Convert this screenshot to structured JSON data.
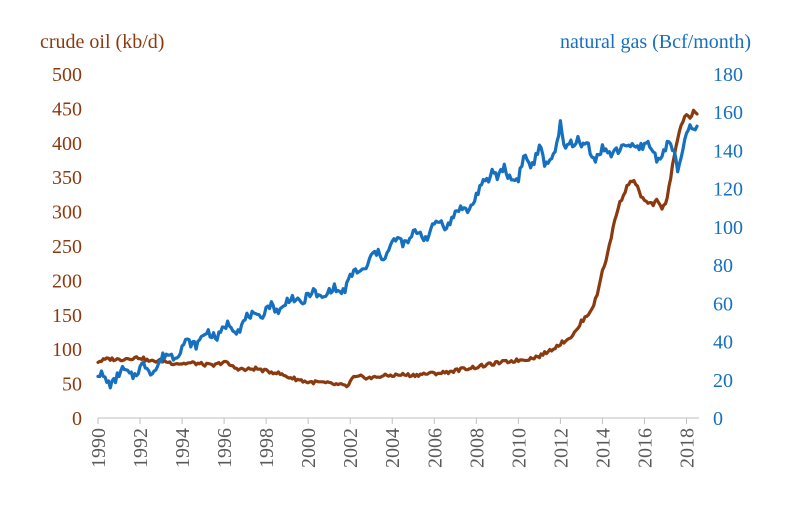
{
  "colors": {
    "oil": "#8b3a0f",
    "gas": "#1570bf",
    "axis": "#bfbfbf"
  },
  "chart_data": {
    "type": "line",
    "left_axis_label": "crude oil (kb/d)",
    "right_axis_label": "natural gas (Bcf/month)",
    "x_ticks": [
      "1990",
      "1992",
      "1994",
      "1996",
      "1998",
      "2000",
      "2002",
      "2004",
      "2006",
      "2008",
      "2010",
      "2012",
      "2014",
      "2016",
      "2018"
    ],
    "left_ticks": [
      "0",
      "50",
      "100",
      "150",
      "200",
      "250",
      "300",
      "350",
      "400",
      "450",
      "500"
    ],
    "right_ticks": [
      "0",
      "20",
      "40",
      "60",
      "80",
      "100",
      "120",
      "140",
      "160",
      "180"
    ],
    "xlim": [
      1990,
      2018.5
    ],
    "left_ylim": [
      0,
      500
    ],
    "right_ylim": [
      0,
      180
    ],
    "grid": false,
    "series": [
      {
        "name": "crude oil (kb/d)",
        "axis": "left",
        "x": [
          1990.0,
          1990.5,
          1991.0,
          1991.5,
          1992.0,
          1992.5,
          1993.0,
          1993.5,
          1994.0,
          1994.5,
          1995.0,
          1995.5,
          1996.0,
          1996.5,
          1997.0,
          1997.5,
          1998.0,
          1998.5,
          1999.0,
          1999.5,
          2000.0,
          2000.5,
          2001.0,
          2001.5,
          2001.9,
          2002.1,
          2002.5,
          2003.0,
          2003.5,
          2004.0,
          2004.5,
          2005.0,
          2005.5,
          2006.0,
          2006.5,
          2007.0,
          2007.5,
          2008.0,
          2008.5,
          2009.0,
          2009.5,
          2010.0,
          2010.5,
          2011.0,
          2011.5,
          2012.0,
          2012.5,
          2012.8,
          2013.0,
          2013.3,
          2013.6,
          2013.8,
          2014.0,
          2014.2,
          2014.4,
          2014.6,
          2014.8,
          2015.0,
          2015.2,
          2015.4,
          2015.6,
          2015.8,
          2016.0,
          2016.2,
          2016.4,
          2016.6,
          2016.8,
          2017.0,
          2017.2,
          2017.4,
          2017.6,
          2017.8,
          2018.0,
          2018.2,
          2018.35,
          2018.5
        ],
        "y": [
          82,
          86,
          85,
          87,
          88,
          82,
          84,
          80,
          79,
          80,
          78,
          76,
          82,
          73,
          70,
          72,
          68,
          66,
          60,
          56,
          52,
          52,
          50,
          48,
          46,
          58,
          60,
          58,
          61,
          62,
          63,
          62,
          64,
          65,
          66,
          69,
          72,
          74,
          77,
          80,
          82,
          84,
          86,
          90,
          98,
          108,
          118,
          128,
          140,
          150,
          165,
          185,
          215,
          232,
          260,
          290,
          310,
          325,
          338,
          346,
          340,
          325,
          315,
          312,
          310,
          316,
          305,
          310,
          340,
          380,
          410,
          430,
          440,
          435,
          450,
          440
        ]
      },
      {
        "name": "natural gas (Bcf/month)",
        "axis": "right",
        "x": [
          1990.0,
          1990.3,
          1990.6,
          1991.0,
          1991.5,
          1992.0,
          1992.5,
          1993.0,
          1993.5,
          1994.0,
          1994.5,
          1995.0,
          1995.5,
          1996.0,
          1996.5,
          1997.0,
          1997.5,
          1998.0,
          1998.5,
          1999.0,
          1999.5,
          2000.0,
          2000.5,
          2001.0,
          2001.5,
          2002.0,
          2002.5,
          2003.0,
          2003.5,
          2004.0,
          2004.5,
          2005.0,
          2005.5,
          2006.0,
          2006.5,
          2007.0,
          2007.5,
          2008.0,
          2008.5,
          2008.8,
          2009.0,
          2009.3,
          2009.6,
          2010.0,
          2010.3,
          2010.6,
          2011.0,
          2011.3,
          2011.6,
          2011.9,
          2012.0,
          2012.2,
          2012.5,
          2012.8,
          2013.0,
          2013.3,
          2013.6,
          2014.0,
          2014.3,
          2014.6,
          2015.0,
          2015.3,
          2015.6,
          2016.0,
          2016.3,
          2016.6,
          2017.0,
          2017.3,
          2017.6,
          2017.8,
          2018.0,
          2018.2,
          2018.4,
          2018.5
        ],
        "y": [
          22,
          19,
          20,
          22,
          24,
          25,
          26,
          29,
          34,
          36,
          40,
          42,
          44,
          46,
          48,
          50,
          54,
          56,
          58,
          60,
          62,
          63,
          65,
          65,
          67,
          72,
          78,
          83,
          86,
          90,
          93,
          95,
          96,
          100,
          102,
          106,
          110,
          115,
          125,
          132,
          124,
          130,
          128,
          124,
          136,
          134,
          140,
          130,
          140,
          145,
          152,
          138,
          145,
          148,
          140,
          142,
          138,
          140,
          136,
          142,
          142,
          140,
          144,
          142,
          140,
          138,
          140,
          142,
          132,
          140,
          146,
          152,
          148,
          154
        ]
      }
    ]
  }
}
